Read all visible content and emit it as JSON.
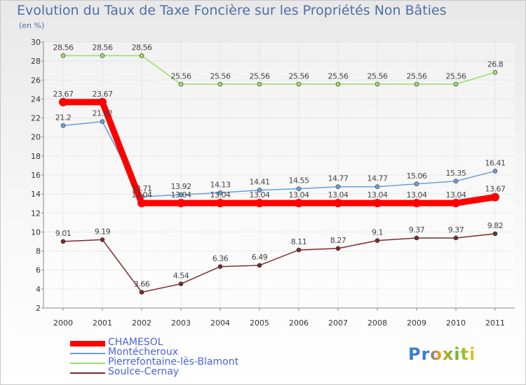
{
  "title": "Evolution du Taux de Taxe Foncière sur les Propriétés Non Bâties",
  "unit_label": "(en %)",
  "brand": "Proxiti",
  "chart_data": {
    "type": "line",
    "title": "Evolution du Taux de Taxe Foncière sur les Propriétés Non Bâties",
    "ylabel": "(en %)",
    "xlabel": "",
    "x": [
      "2000",
      "2001",
      "2002",
      "2003",
      "2004",
      "2005",
      "2006",
      "2007",
      "2008",
      "2009",
      "2010",
      "2011"
    ],
    "ylim": [
      2,
      30
    ],
    "yticks": [
      "2",
      "4",
      "6",
      "8",
      "10",
      "12",
      "14",
      "16",
      "18",
      "20",
      "22",
      "24",
      "26",
      "28",
      "30"
    ],
    "grid": true,
    "legend_position": "bottom-left",
    "series": [
      {
        "name": "CHAMESOL",
        "color": "#ff0000",
        "values": [
          23.67,
          23.67,
          13.04,
          13.04,
          13.04,
          13.04,
          13.04,
          13.04,
          13.04,
          13.04,
          13.04,
          13.67
        ],
        "labels": [
          "23.67",
          "23.67",
          "13.04",
          "13.04",
          "13.04",
          "13.04",
          "13.04",
          "13.04",
          "13.04",
          "13.04",
          "13.04",
          "13.67"
        ]
      },
      {
        "name": "Montécheroux",
        "color": "#6a9fd8",
        "values": [
          21.2,
          21.62,
          13.71,
          13.92,
          14.13,
          14.41,
          14.55,
          14.77,
          14.77,
          15.06,
          15.35,
          16.41
        ],
        "labels": [
          "21.2",
          "21.62",
          "13.71",
          "13.92",
          "14.13",
          "14.41",
          "14.55",
          "14.77",
          "14.77",
          "15.06",
          "15.35",
          "16.41"
        ]
      },
      {
        "name": "Pierrefontaine-lès-Blamont",
        "color": "#99dd66",
        "values": [
          28.56,
          28.56,
          28.56,
          25.56,
          25.56,
          25.56,
          25.56,
          25.56,
          25.56,
          25.56,
          25.56,
          26.8
        ],
        "labels": [
          "28.56",
          "28.56",
          "28.56",
          "25.56",
          "25.56",
          "25.56",
          "25.56",
          "25.56",
          "25.56",
          "25.56",
          "25.56",
          "26.8"
        ]
      },
      {
        "name": "Soulce-Cernay",
        "color": "#7a2a2a",
        "values": [
          9.01,
          9.19,
          3.66,
          4.54,
          6.36,
          6.49,
          8.11,
          8.27,
          9.1,
          9.37,
          9.37,
          9.82
        ],
        "labels": [
          "9.01",
          "9.19",
          "3.66",
          "4.54",
          "6.36",
          "6.49",
          "8.11",
          "8.27",
          "9.1",
          "9.37",
          "9.37",
          "9.82"
        ]
      }
    ]
  },
  "colors": {
    "title": "#4d6fa6",
    "legend_text": "#4a63d8",
    "grid": "#c9c9c9",
    "axis": "#888888",
    "tick_text": "#333333",
    "label_text": "#444444"
  }
}
